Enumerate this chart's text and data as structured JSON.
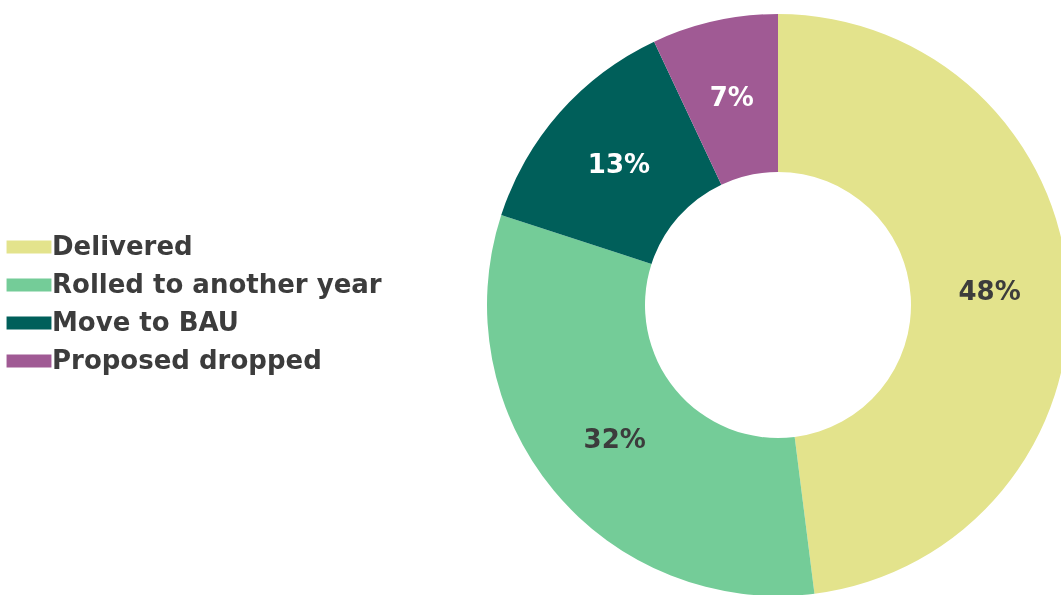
{
  "chart_data": {
    "type": "donut",
    "categories": [
      "Delivered",
      "Rolled to another year",
      "Move to BAU",
      "Proposed dropped"
    ],
    "values": [
      48,
      32,
      13,
      7
    ],
    "colors": [
      "#e3e38c",
      "#74cc98",
      "#005f5a",
      "#a05a94"
    ],
    "value_labels": [
      "48%",
      "32%",
      "13%",
      "7%"
    ],
    "legend": "left"
  }
}
